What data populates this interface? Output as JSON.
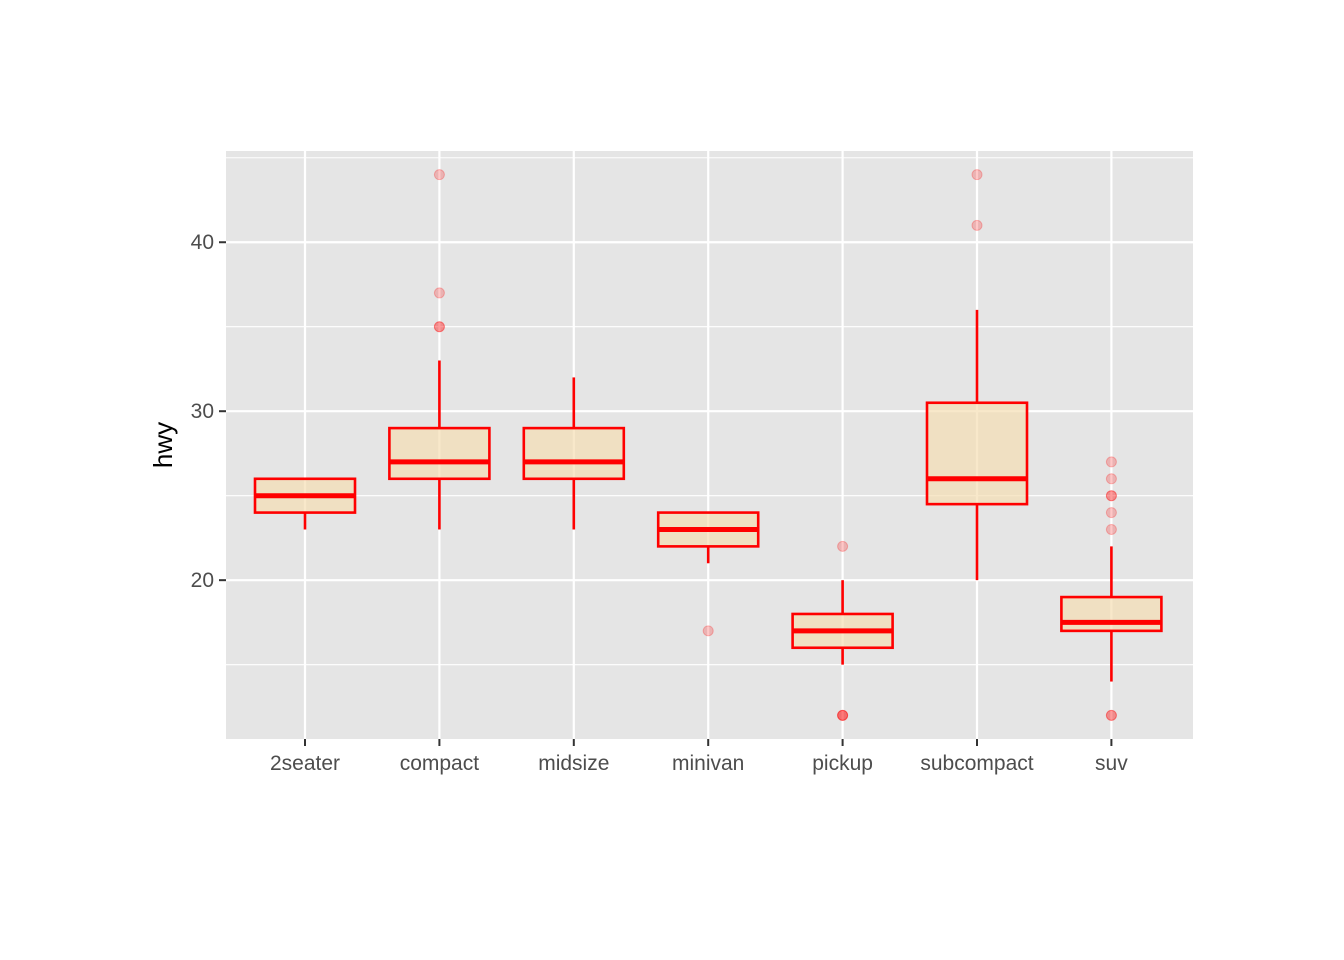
{
  "chart_data": {
    "type": "boxplot",
    "title": "",
    "xlabel": "",
    "ylabel": "hwy",
    "ylim": [
      10.6,
      45.4
    ],
    "y_ticks": [
      20,
      30,
      40
    ],
    "y_minor_ticks": [
      15,
      25,
      35,
      45
    ],
    "grid": true,
    "legend": "none",
    "colors": {
      "panel_background": "#e5e5e5",
      "grid": "#ffffff",
      "box_outline": "#ff0000",
      "box_fill": "#f5deb3",
      "outlier": "#ff0000"
    },
    "categories": [
      "2seater",
      "compact",
      "midsize",
      "minivan",
      "pickup",
      "subcompact",
      "suv"
    ],
    "boxes": [
      {
        "category": "2seater",
        "whisker_low": 23,
        "q1": 24,
        "median": 25,
        "q3": 26,
        "whisker_high": 26,
        "outliers": []
      },
      {
        "category": "compact",
        "whisker_low": 23,
        "q1": 26,
        "median": 27,
        "q3": 29,
        "whisker_high": 33,
        "outliers": [
          35,
          35,
          37,
          44
        ]
      },
      {
        "category": "midsize",
        "whisker_low": 23,
        "q1": 26,
        "median": 27,
        "q3": 29,
        "whisker_high": 32,
        "outliers": []
      },
      {
        "category": "minivan",
        "whisker_low": 21,
        "q1": 22,
        "median": 23,
        "q3": 24,
        "whisker_high": 24,
        "outliers": [
          17
        ]
      },
      {
        "category": "pickup",
        "whisker_low": 15,
        "q1": 16,
        "median": 17,
        "q3": 18,
        "whisker_high": 20,
        "outliers": [
          12,
          12,
          12,
          22
        ]
      },
      {
        "category": "subcompact",
        "whisker_low": 20,
        "q1": 24.5,
        "median": 26,
        "q3": 30.5,
        "whisker_high": 36,
        "outliers": [
          41,
          44
        ]
      },
      {
        "category": "suv",
        "whisker_low": 14,
        "q1": 17,
        "median": 17.5,
        "q3": 19,
        "whisker_high": 22,
        "outliers": [
          12,
          12,
          23,
          24,
          25,
          25,
          26,
          27
        ]
      }
    ]
  }
}
